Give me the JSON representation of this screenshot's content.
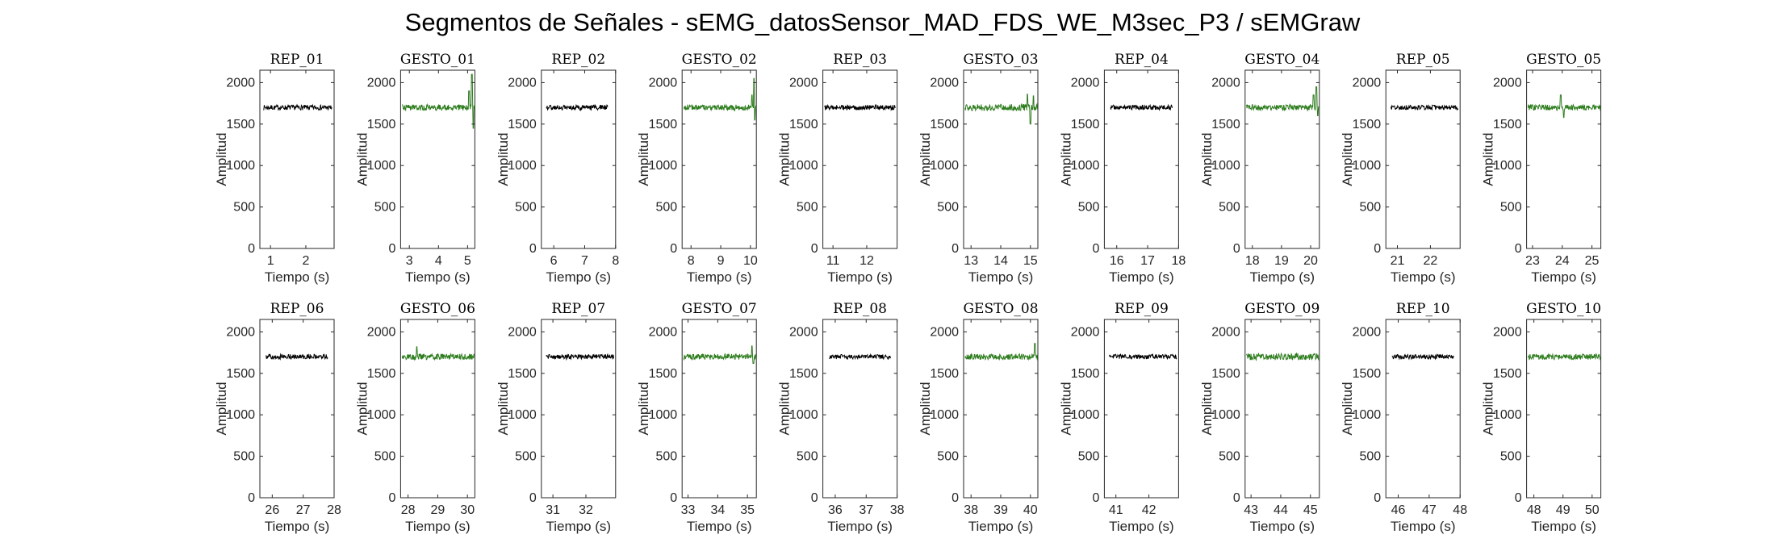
{
  "figure": {
    "title": "Segmentos de Señales - sEMG_datosSensor_MAD_FDS_WE_M3sec_P3 / sEMGraw"
  },
  "colors": {
    "rep": "#000000",
    "gesture": "#2e7d1e",
    "axis": "#262626"
  },
  "chart_data": [
    {
      "type": "line",
      "title": "REP_01",
      "xlabel": "Tiempo (s)",
      "ylabel": "Amplitud",
      "xlim": [
        0.7,
        2.8
      ],
      "ylim": [
        0,
        2150
      ],
      "xticks": [
        1,
        2
      ],
      "yticks": [
        0,
        500,
        1000,
        1500,
        2000
      ],
      "series": [
        {
          "name": "",
          "color": "#000000",
          "t_start": 0.8,
          "t_end": 2.75,
          "baseline": 1700,
          "band": 30,
          "spikes": []
        }
      ]
    },
    {
      "type": "line",
      "title": "GESTO_01",
      "xlabel": "Tiempo (s)",
      "ylabel": "Amplitud",
      "xlim": [
        2.7,
        5.25
      ],
      "ylim": [
        0,
        2150
      ],
      "xticks": [
        3,
        4,
        5
      ],
      "yticks": [
        0,
        500,
        1000,
        1500,
        2000
      ],
      "series": [
        {
          "name": "",
          "color": "#2e7d1e",
          "t_start": 2.75,
          "t_end": 5.25,
          "baseline": 1700,
          "band": 35,
          "spikes": [
            [
              5.05,
              1900
            ],
            [
              5.15,
              2100
            ],
            [
              5.2,
              1450
            ]
          ]
        }
      ]
    },
    {
      "type": "line",
      "title": "REP_02",
      "xlabel": "Tiempo (s)",
      "ylabel": "Amplitud",
      "xlim": [
        5.6,
        8
      ],
      "ylim": [
        0,
        2150
      ],
      "xticks": [
        6,
        7,
        8
      ],
      "yticks": [
        0,
        500,
        1000,
        1500,
        2000
      ],
      "series": [
        {
          "name": "",
          "color": "#000000",
          "t_start": 5.75,
          "t_end": 7.75,
          "baseline": 1700,
          "band": 30,
          "spikes": []
        }
      ]
    },
    {
      "type": "line",
      "title": "GESTO_02",
      "xlabel": "Tiempo (s)",
      "ylabel": "Amplitud",
      "xlim": [
        7.7,
        10.2
      ],
      "ylim": [
        0,
        2150
      ],
      "xticks": [
        8,
        9,
        10
      ],
      "yticks": [
        0,
        500,
        1000,
        1500,
        2000
      ],
      "series": [
        {
          "name": "",
          "color": "#2e7d1e",
          "t_start": 7.75,
          "t_end": 10.2,
          "baseline": 1700,
          "band": 35,
          "spikes": [
            [
              10.05,
              1850
            ],
            [
              10.12,
              2050
            ],
            [
              10.15,
              1550
            ]
          ]
        }
      ]
    },
    {
      "type": "line",
      "title": "REP_03",
      "xlabel": "Tiempo (s)",
      "ylabel": "Amplitud",
      "xlim": [
        10.7,
        12.9
      ],
      "ylim": [
        0,
        2150
      ],
      "xticks": [
        11,
        12
      ],
      "yticks": [
        0,
        500,
        1000,
        1500,
        2000
      ],
      "series": [
        {
          "name": "",
          "color": "#000000",
          "t_start": 10.75,
          "t_end": 12.85,
          "baseline": 1700,
          "band": 30,
          "spikes": []
        }
      ]
    },
    {
      "type": "line",
      "title": "GESTO_03",
      "xlabel": "Tiempo (s)",
      "ylabel": "Amplitud",
      "xlim": [
        12.75,
        15.25
      ],
      "ylim": [
        0,
        2150
      ],
      "xticks": [
        13,
        14,
        15
      ],
      "yticks": [
        0,
        500,
        1000,
        1500,
        2000
      ],
      "series": [
        {
          "name": "",
          "color": "#2e7d1e",
          "t_start": 12.8,
          "t_end": 15.25,
          "baseline": 1700,
          "band": 40,
          "spikes": [
            [
              14.9,
              1860
            ],
            [
              15.0,
              1500
            ],
            [
              15.1,
              1840
            ]
          ]
        }
      ]
    },
    {
      "type": "line",
      "title": "REP_04",
      "xlabel": "Tiempo (s)",
      "ylabel": "Amplitud",
      "xlim": [
        15.6,
        18
      ],
      "ylim": [
        0,
        2150
      ],
      "xticks": [
        16,
        17,
        18
      ],
      "yticks": [
        0,
        500,
        1000,
        1500,
        2000
      ],
      "series": [
        {
          "name": "",
          "color": "#000000",
          "t_start": 15.8,
          "t_end": 17.8,
          "baseline": 1700,
          "band": 30,
          "spikes": []
        }
      ]
    },
    {
      "type": "line",
      "title": "GESTO_04",
      "xlabel": "Tiempo (s)",
      "ylabel": "Amplitud",
      "xlim": [
        17.75,
        20.3
      ],
      "ylim": [
        0,
        2150
      ],
      "xticks": [
        18,
        19,
        20
      ],
      "yticks": [
        0,
        500,
        1000,
        1500,
        2000
      ],
      "series": [
        {
          "name": "",
          "color": "#2e7d1e",
          "t_start": 17.8,
          "t_end": 20.3,
          "baseline": 1700,
          "band": 35,
          "spikes": [
            [
              20.1,
              1850
            ],
            [
              20.2,
              1950
            ],
            [
              20.25,
              1600
            ]
          ]
        }
      ]
    },
    {
      "type": "line",
      "title": "REP_05",
      "xlabel": "Tiempo (s)",
      "ylabel": "Amplitud",
      "xlim": [
        20.65,
        22.9
      ],
      "ylim": [
        0,
        2150
      ],
      "xticks": [
        21,
        22
      ],
      "yticks": [
        0,
        500,
        1000,
        1500,
        2000
      ],
      "series": [
        {
          "name": "",
          "color": "#000000",
          "t_start": 20.8,
          "t_end": 22.85,
          "baseline": 1700,
          "band": 28,
          "spikes": []
        }
      ]
    },
    {
      "type": "line",
      "title": "GESTO_05",
      "xlabel": "Tiempo (s)",
      "ylabel": "Amplitud",
      "xlim": [
        22.8,
        25.3
      ],
      "ylim": [
        0,
        2150
      ],
      "xticks": [
        23,
        24,
        25
      ],
      "yticks": [
        0,
        500,
        1000,
        1500,
        2000
      ],
      "series": [
        {
          "name": "",
          "color": "#2e7d1e",
          "t_start": 22.85,
          "t_end": 25.3,
          "baseline": 1700,
          "band": 35,
          "spikes": [
            [
              23.95,
              1850
            ],
            [
              24.05,
              1580
            ]
          ]
        }
      ]
    },
    {
      "type": "line",
      "title": "REP_06",
      "xlabel": "Tiempo (s)",
      "ylabel": "Amplitud",
      "xlim": [
        25.6,
        28
      ],
      "ylim": [
        0,
        2150
      ],
      "xticks": [
        26,
        27,
        28
      ],
      "yticks": [
        0,
        500,
        1000,
        1500,
        2000
      ],
      "series": [
        {
          "name": "",
          "color": "#000000",
          "t_start": 25.8,
          "t_end": 27.8,
          "baseline": 1700,
          "band": 30,
          "spikes": []
        }
      ]
    },
    {
      "type": "line",
      "title": "GESTO_06",
      "xlabel": "Tiempo (s)",
      "ylabel": "Amplitud",
      "xlim": [
        27.75,
        30.25
      ],
      "ylim": [
        0,
        2150
      ],
      "xticks": [
        28,
        29,
        30
      ],
      "yticks": [
        0,
        500,
        1000,
        1500,
        2000
      ],
      "series": [
        {
          "name": "",
          "color": "#2e7d1e",
          "t_start": 27.8,
          "t_end": 30.25,
          "baseline": 1700,
          "band": 35,
          "spikes": [
            [
              28.3,
              1820
            ]
          ]
        }
      ]
    },
    {
      "type": "line",
      "title": "REP_07",
      "xlabel": "Tiempo (s)",
      "ylabel": "Amplitud",
      "xlim": [
        30.65,
        32.9
      ],
      "ylim": [
        0,
        2150
      ],
      "xticks": [
        31,
        32
      ],
      "yticks": [
        0,
        500,
        1000,
        1500,
        2000
      ],
      "series": [
        {
          "name": "",
          "color": "#000000",
          "t_start": 30.8,
          "t_end": 32.85,
          "baseline": 1700,
          "band": 30,
          "spikes": []
        }
      ]
    },
    {
      "type": "line",
      "title": "GESTO_07",
      "xlabel": "Tiempo (s)",
      "ylabel": "Amplitud",
      "xlim": [
        32.8,
        35.3
      ],
      "ylim": [
        0,
        2150
      ],
      "xticks": [
        33,
        34,
        35
      ],
      "yticks": [
        0,
        500,
        1000,
        1500,
        2000
      ],
      "series": [
        {
          "name": "",
          "color": "#2e7d1e",
          "t_start": 32.85,
          "t_end": 35.3,
          "baseline": 1700,
          "band": 35,
          "spikes": [
            [
              35.15,
              1830
            ],
            [
              35.2,
              1620
            ]
          ]
        }
      ]
    },
    {
      "type": "line",
      "title": "REP_08",
      "xlabel": "Tiempo (s)",
      "ylabel": "Amplitud",
      "xlim": [
        35.6,
        38
      ],
      "ylim": [
        0,
        2150
      ],
      "xticks": [
        36,
        37,
        38
      ],
      "yticks": [
        0,
        500,
        1000,
        1500,
        2000
      ],
      "series": [
        {
          "name": "",
          "color": "#000000",
          "t_start": 35.8,
          "t_end": 37.8,
          "baseline": 1700,
          "band": 28,
          "spikes": []
        }
      ]
    },
    {
      "type": "line",
      "title": "GESTO_08",
      "xlabel": "Tiempo (s)",
      "ylabel": "Amplitud",
      "xlim": [
        37.75,
        40.25
      ],
      "ylim": [
        0,
        2150
      ],
      "xticks": [
        38,
        39,
        40
      ],
      "yticks": [
        0,
        500,
        1000,
        1500,
        2000
      ],
      "series": [
        {
          "name": "",
          "color": "#2e7d1e",
          "t_start": 37.8,
          "t_end": 40.25,
          "baseline": 1700,
          "band": 35,
          "spikes": [
            [
              40.15,
              1860
            ]
          ]
        }
      ]
    },
    {
      "type": "line",
      "title": "REP_09",
      "xlabel": "Tiempo (s)",
      "ylabel": "Amplitud",
      "xlim": [
        40.65,
        42.9
      ],
      "ylim": [
        0,
        2150
      ],
      "xticks": [
        41,
        42
      ],
      "yticks": [
        0,
        500,
        1000,
        1500,
        2000
      ],
      "series": [
        {
          "name": "",
          "color": "#000000",
          "t_start": 40.8,
          "t_end": 42.85,
          "baseline": 1700,
          "band": 28,
          "spikes": []
        }
      ]
    },
    {
      "type": "line",
      "title": "GESTO_09",
      "xlabel": "Tiempo (s)",
      "ylabel": "Amplitud",
      "xlim": [
        42.8,
        45.3
      ],
      "ylim": [
        0,
        2150
      ],
      "xticks": [
        43,
        44,
        45
      ],
      "yticks": [
        0,
        500,
        1000,
        1500,
        2000
      ],
      "series": [
        {
          "name": "",
          "color": "#2e7d1e",
          "t_start": 42.85,
          "t_end": 45.3,
          "baseline": 1700,
          "band": 40,
          "spikes": []
        }
      ]
    },
    {
      "type": "line",
      "title": "REP_10",
      "xlabel": "Tiempo (s)",
      "ylabel": "Amplitud",
      "xlim": [
        45.6,
        48
      ],
      "ylim": [
        0,
        2150
      ],
      "xticks": [
        46,
        47,
        48
      ],
      "yticks": [
        0,
        500,
        1000,
        1500,
        2000
      ],
      "series": [
        {
          "name": "",
          "color": "#000000",
          "t_start": 45.8,
          "t_end": 47.8,
          "baseline": 1700,
          "band": 28,
          "spikes": []
        }
      ]
    },
    {
      "type": "line",
      "title": "GESTO_10",
      "xlabel": "Tiempo (s)",
      "ylabel": "Amplitud",
      "xlim": [
        47.75,
        50.3
      ],
      "ylim": [
        0,
        2150
      ],
      "xticks": [
        48,
        49,
        50
      ],
      "yticks": [
        0,
        500,
        1000,
        1500,
        2000
      ],
      "series": [
        {
          "name": "",
          "color": "#2e7d1e",
          "t_start": 47.8,
          "t_end": 50.3,
          "baseline": 1700,
          "band": 35,
          "spikes": []
        }
      ]
    }
  ]
}
